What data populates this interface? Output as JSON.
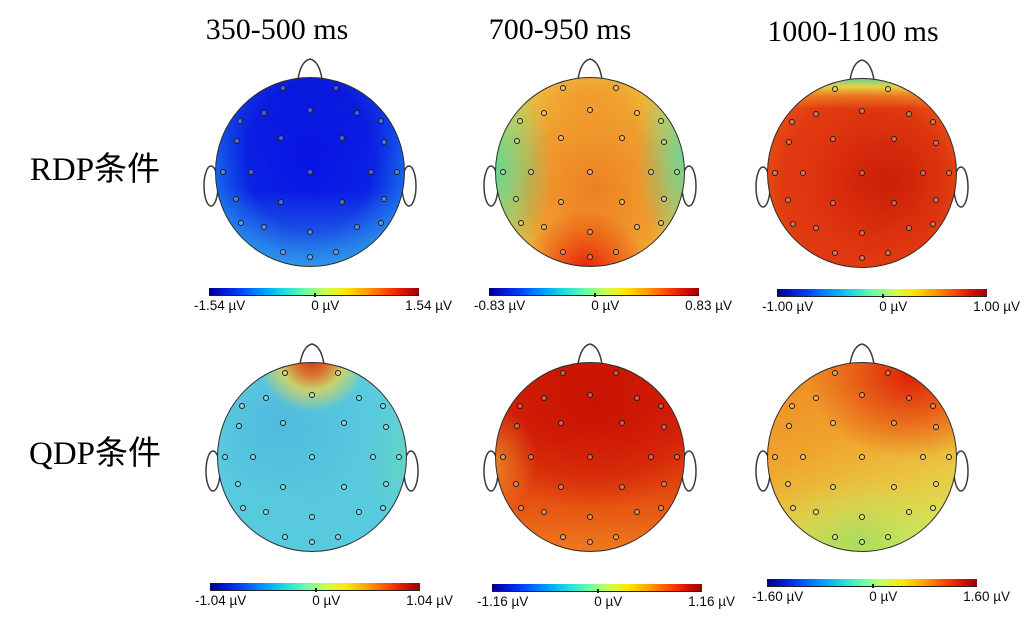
{
  "figure": {
    "column_titles": [
      "350-500 ms",
      "700-950 ms",
      "1000-1100 ms"
    ],
    "row_labels": [
      "RDP条件",
      "QDP条件"
    ]
  },
  "chart_data": {
    "type": "heatmap",
    "subtype": "eeg-scalp-topography-grid",
    "colormap": "jet",
    "unit": "µV",
    "rows": [
      "RDP条件",
      "QDP条件"
    ],
    "columns": [
      "350-500 ms",
      "700-950 ms",
      "1000-1100 ms"
    ],
    "panels": [
      {
        "row_label": "RDP条件",
        "time_window": "350-500 ms",
        "scale": {
          "min": -1.54,
          "zero": 0,
          "max": 1.54
        },
        "tick_labels": {
          "min": "-1.54 µV",
          "zero": "0 µV",
          "max": "1.54 µV"
        },
        "distribution": "broad negativity over the whole scalp (deep blue), slightly weaker (cyan) along posterior and lateral rim"
      },
      {
        "row_label": "RDP条件",
        "time_window": "700-950 ms",
        "scale": {
          "min": -0.83,
          "zero": 0,
          "max": 0.83
        },
        "tick_labels": {
          "min": "-0.83 µV",
          "zero": "0 µV",
          "max": "0.83 µV"
        },
        "distribution": "midline fronto-central and centro-parietal positivity (orange) with occipital maximum (red); near zero at left/right temporal edges (green)"
      },
      {
        "row_label": "RDP条件",
        "time_window": "1000-1100 ms",
        "scale": {
          "min": -1.0,
          "zero": 0,
          "max": 1.0
        },
        "tick_labels": {
          "min": "-1.00 µV",
          "zero": "0 µV",
          "max": "1.00 µV"
        },
        "distribution": "strong widespread positivity (red) with right centro-parietal maximum; near zero only at the frontal pole rim (yellow-green)"
      },
      {
        "row_label": "QDP条件",
        "time_window": "350-500 ms",
        "scale": {
          "min": -1.04,
          "zero": 0,
          "max": 1.04
        },
        "tick_labels": {
          "min": "-1.04 µV",
          "zero": "0 µV",
          "max": "1.04 µV"
        },
        "distribution": "weak negativity over the whole scalp (cyan) with a small positive hotspot at the frontal pole (red-orange)"
      },
      {
        "row_label": "QDP条件",
        "time_window": "700-950 ms",
        "scale": {
          "min": -1.16,
          "zero": 0,
          "max": 1.16
        },
        "tick_labels": {
          "min": "-1.16 µV",
          "zero": "0 µV",
          "max": "1.16 µV"
        },
        "distribution": "strong fronto-central positivity (dark red) grading to orange over posterior scalp"
      },
      {
        "row_label": "QDP条件",
        "time_window": "1000-1100 ms",
        "scale": {
          "min": -1.6,
          "zero": 0,
          "max": 1.6
        },
        "tick_labels": {
          "min": "-1.60 µV",
          "zero": "0 µV",
          "max": "1.60 µV"
        },
        "distribution": "right-frontal positivity maximum (red) decreasing toward parieto-occipital region (yellow-green)"
      }
    ],
    "colorbar_gradient_stops": [
      "#00007f",
      "#0012c8",
      "#0045ff",
      "#00a2ff",
      "#25e0dc",
      "#73ff9f",
      "#cdff4b",
      "#ffe600",
      "#ff9d00",
      "#ff4e00",
      "#e11400",
      "#990000"
    ],
    "electrode_positions_pct": [
      [
        35.9,
        5.4
      ],
      [
        63.6,
        5.4
      ],
      [
        12.9,
        23.0
      ],
      [
        25.6,
        18.5
      ],
      [
        50,
        17.1
      ],
      [
        74.9,
        18.5
      ],
      [
        87.6,
        23.0
      ],
      [
        11.0,
        33.6
      ],
      [
        34.5,
        32.1
      ],
      [
        66.9,
        32.1
      ],
      [
        89.5,
        34.0
      ],
      [
        3.9,
        50
      ],
      [
        18.5,
        50
      ],
      [
        50,
        50
      ],
      [
        82.4,
        50
      ],
      [
        96.1,
        50
      ],
      [
        10.5,
        64.6
      ],
      [
        34.5,
        66.0
      ],
      [
        66.9,
        66.0
      ],
      [
        89.5,
        64.6
      ],
      [
        13.3,
        77.0
      ],
      [
        25.6,
        79.1
      ],
      [
        50,
        82.0
      ],
      [
        74.9,
        79.1
      ],
      [
        87.6,
        77.0
      ],
      [
        35.9,
        92.8
      ],
      [
        50,
        95.1
      ],
      [
        63.6,
        92.8
      ]
    ]
  }
}
